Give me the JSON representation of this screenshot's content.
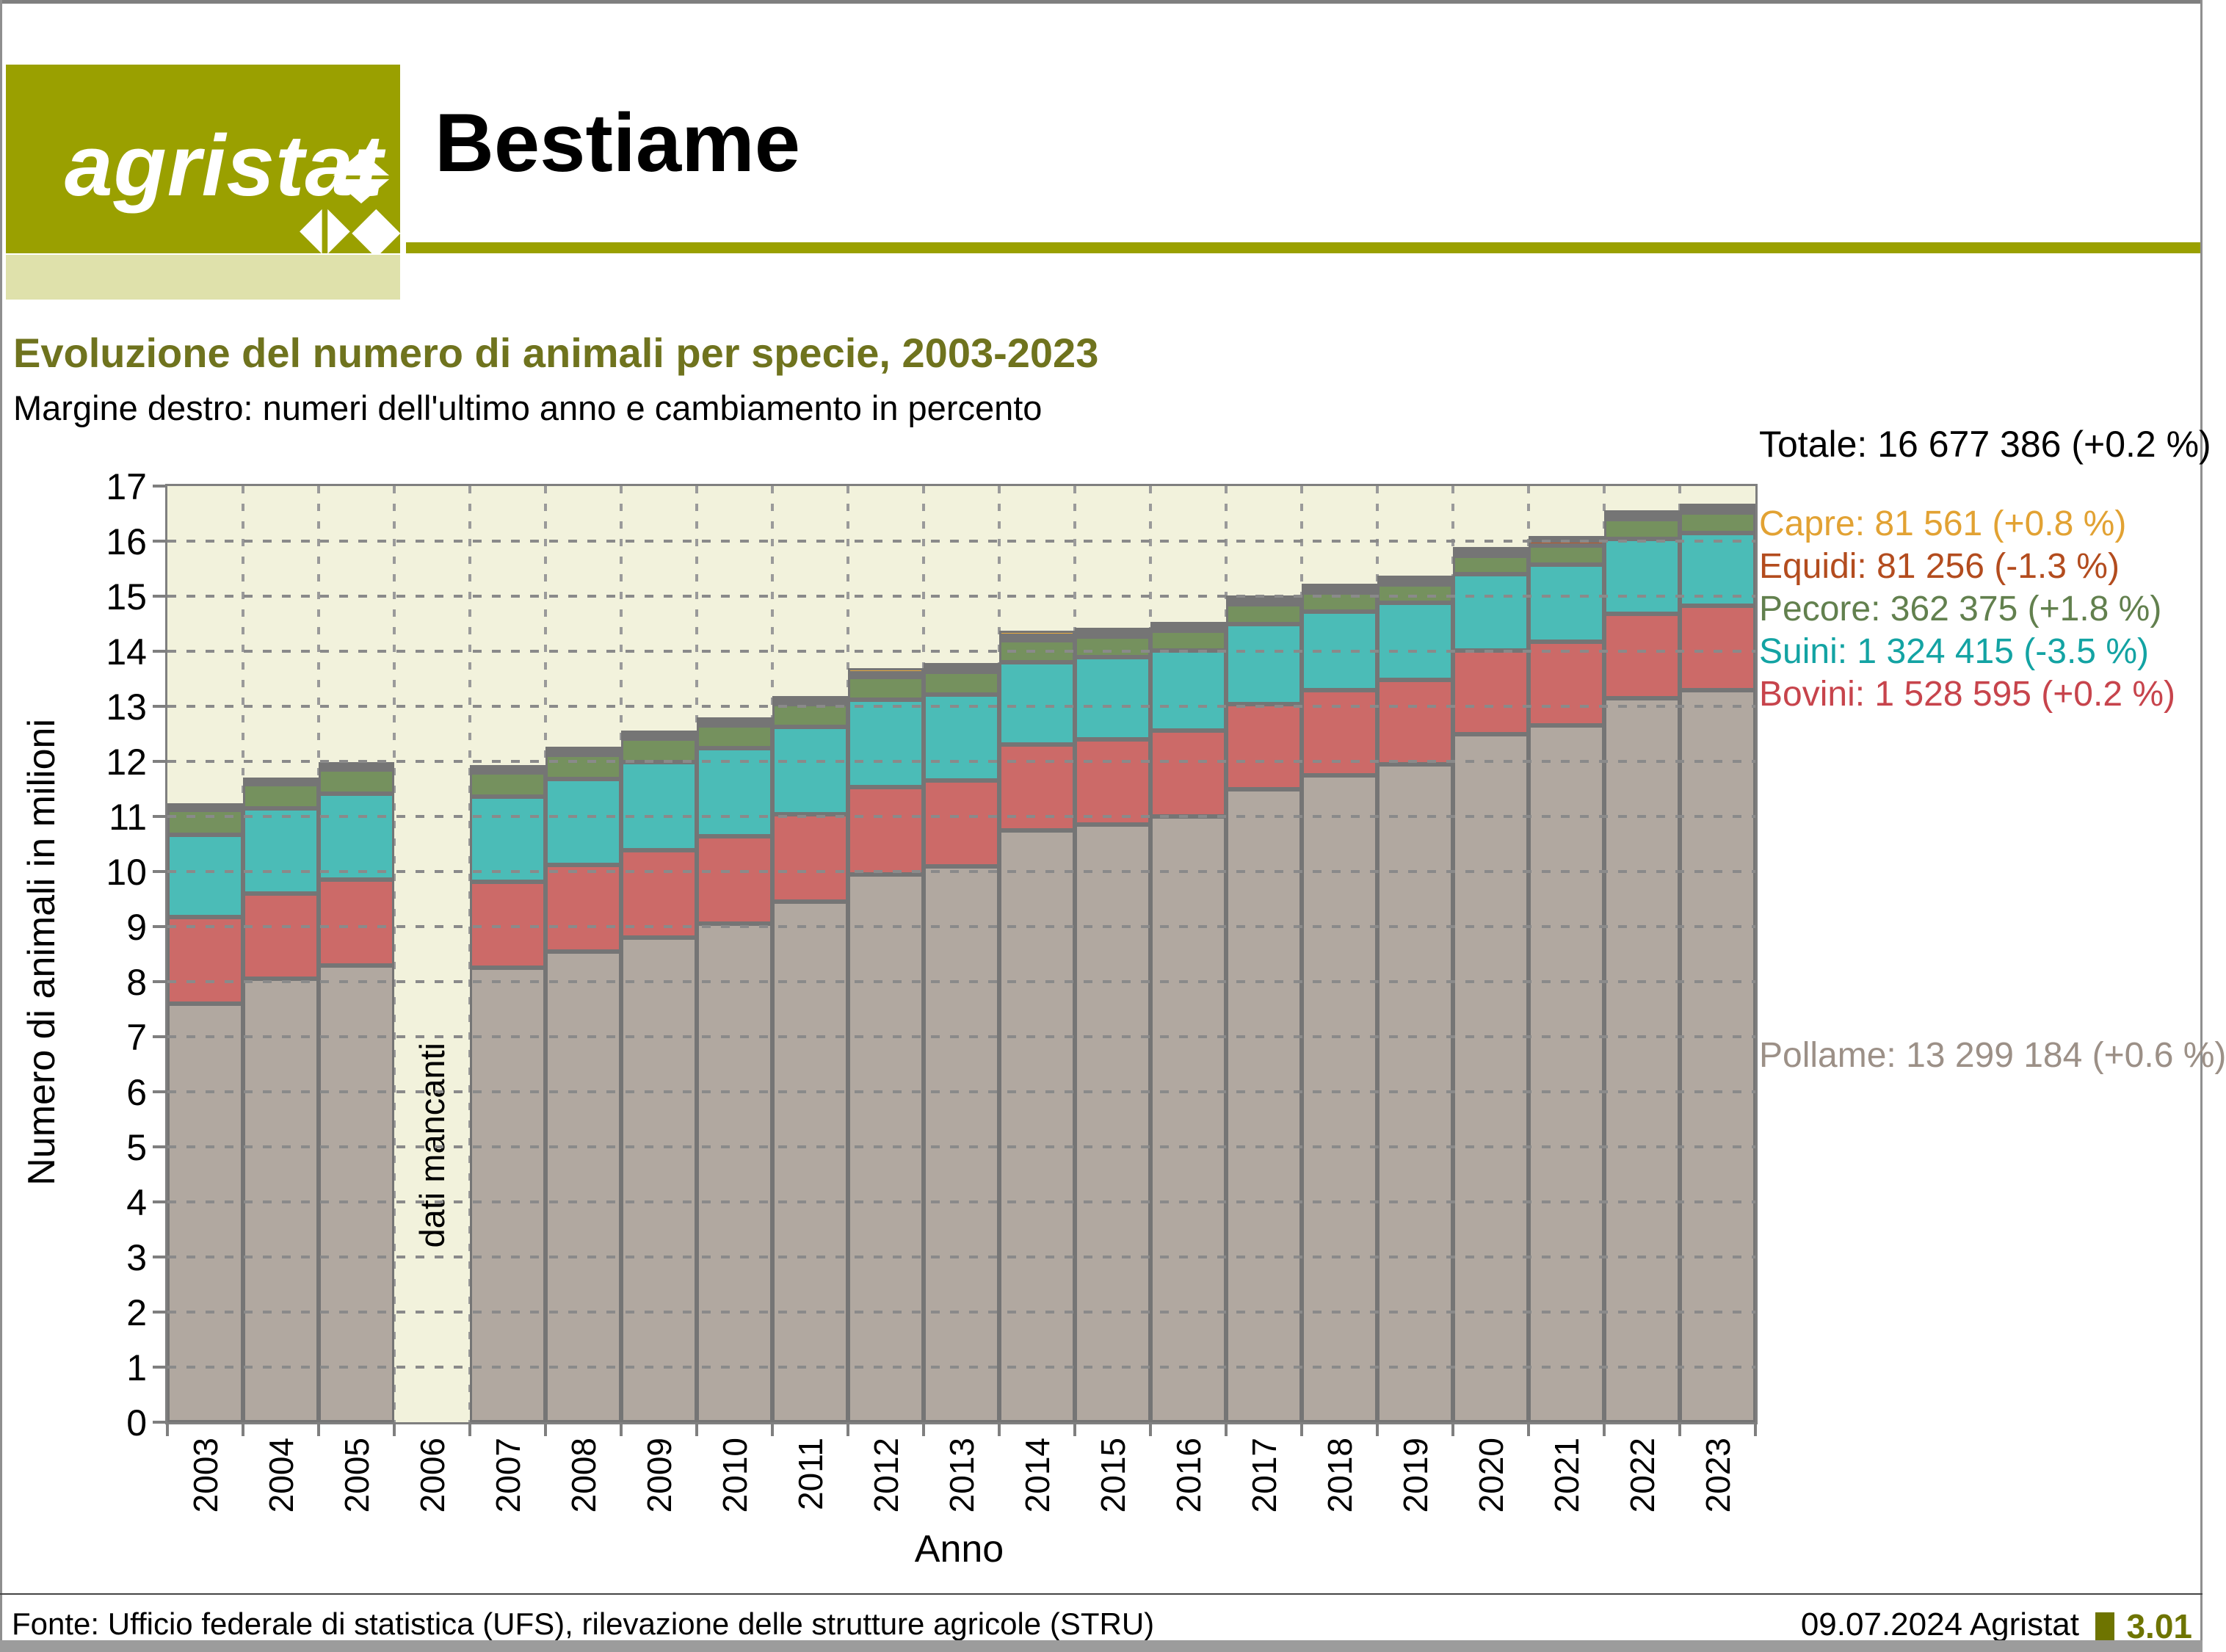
{
  "header": {
    "logo_text": "agristat",
    "page_title": "Bestiame",
    "brand_color": "#9aa000",
    "brand_color_light": "#dfe1ab"
  },
  "title": "Evoluzione del numero di animali per specie, 2003-2023",
  "subtitle": "Margine destro: numeri dell'ultimo anno e cambiamento in percento",
  "right_margin_labels": [
    {
      "key": "totale",
      "text": "Totale: 16 677 386 (+0.2 %)",
      "color": "#000000"
    },
    {
      "key": "capre",
      "text": "Capre: 81 561 (+0.8 %)",
      "color": "#e2a233"
    },
    {
      "key": "equidi",
      "text": "Equidi: 81 256 (-1.3 %)",
      "color": "#b34c1e"
    },
    {
      "key": "pecore",
      "text": "Pecore: 362 375 (+1.8 %)",
      "color": "#62804e"
    },
    {
      "key": "suini",
      "text": "Suini: 1 324 415 (-3.5 %)",
      "color": "#13a3a3"
    },
    {
      "key": "bovini",
      "text": "Bovini: 1 528 595 (+0.2 %)",
      "color": "#c7444c"
    },
    {
      "key": "pollame",
      "text": "Pollame: 13 299 184 (+0.6 %)",
      "color": "#9c9087"
    }
  ],
  "chart_data": {
    "type": "bar",
    "stacked": true,
    "title": "Evoluzione del numero di animali per specie, 2003-2023",
    "xlabel": "Anno",
    "ylabel": "Numero di animali in milioni",
    "ylim": [
      0,
      17
    ],
    "ytick_step": 1,
    "unit": "milioni di animali",
    "grid": "dotted",
    "plot_bg": "#f2f2dc",
    "missing": {
      "year": 2006,
      "label": "dati mancanti"
    },
    "x": [
      2003,
      2004,
      2005,
      2006,
      2007,
      2008,
      2009,
      2010,
      2011,
      2012,
      2013,
      2014,
      2015,
      2016,
      2017,
      2018,
      2019,
      2020,
      2021,
      2022,
      2023
    ],
    "series": [
      {
        "name": "Pollame",
        "color": "#b1a8a0",
        "values": [
          7.6,
          8.05,
          8.3,
          null,
          8.25,
          8.55,
          8.8,
          9.05,
          9.45,
          9.95,
          10.1,
          10.75,
          10.85,
          11.0,
          11.5,
          11.75,
          11.95,
          12.5,
          12.65,
          13.15,
          13.299
        ]
      },
      {
        "name": "Bovini",
        "color": "#cc6a68",
        "values": [
          1.57,
          1.55,
          1.555,
          null,
          1.56,
          1.565,
          1.59,
          1.59,
          1.59,
          1.59,
          1.56,
          1.555,
          1.55,
          1.555,
          1.545,
          1.545,
          1.525,
          1.515,
          1.525,
          1.525,
          1.529
        ]
      },
      {
        "name": "Suini",
        "color": "#4bbcb7",
        "values": [
          1.5,
          1.545,
          1.56,
          null,
          1.55,
          1.57,
          1.6,
          1.6,
          1.585,
          1.58,
          1.56,
          1.5,
          1.49,
          1.455,
          1.45,
          1.43,
          1.4,
          1.38,
          1.4,
          1.365,
          1.324
        ]
      },
      {
        "name": "Pecore",
        "color": "#75915e",
        "values": [
          0.445,
          0.44,
          0.445,
          null,
          0.44,
          0.44,
          0.43,
          0.42,
          0.41,
          0.41,
          0.41,
          0.4,
          0.375,
          0.365,
          0.355,
          0.345,
          0.34,
          0.34,
          0.35,
          0.355,
          0.362
        ]
      },
      {
        "name": "Equidi",
        "color": "#bc5727",
        "values": [
          0.055,
          0.056,
          0.058,
          null,
          0.06,
          0.061,
          0.062,
          0.063,
          0.07,
          0.075,
          0.078,
          0.08,
          0.08,
          0.08,
          0.08,
          0.081,
          0.081,
          0.081,
          0.082,
          0.082,
          0.081
        ]
      },
      {
        "name": "Capre",
        "color": "#e5a93f",
        "values": [
          0.069,
          0.07,
          0.072,
          null,
          0.074,
          0.075,
          0.077,
          0.08,
          0.082,
          0.084,
          0.085,
          0.086,
          0.08,
          0.08,
          0.079,
          0.08,
          0.08,
          0.081,
          0.082,
          0.082,
          0.082
        ]
      }
    ]
  },
  "footer": {
    "source": "Fonte: Ufficio federale di statistica (UFS), rilevazione delle strutture agricole (STRU)",
    "date_author": "09.07.2024 Agristat",
    "page_number": "3.01"
  }
}
